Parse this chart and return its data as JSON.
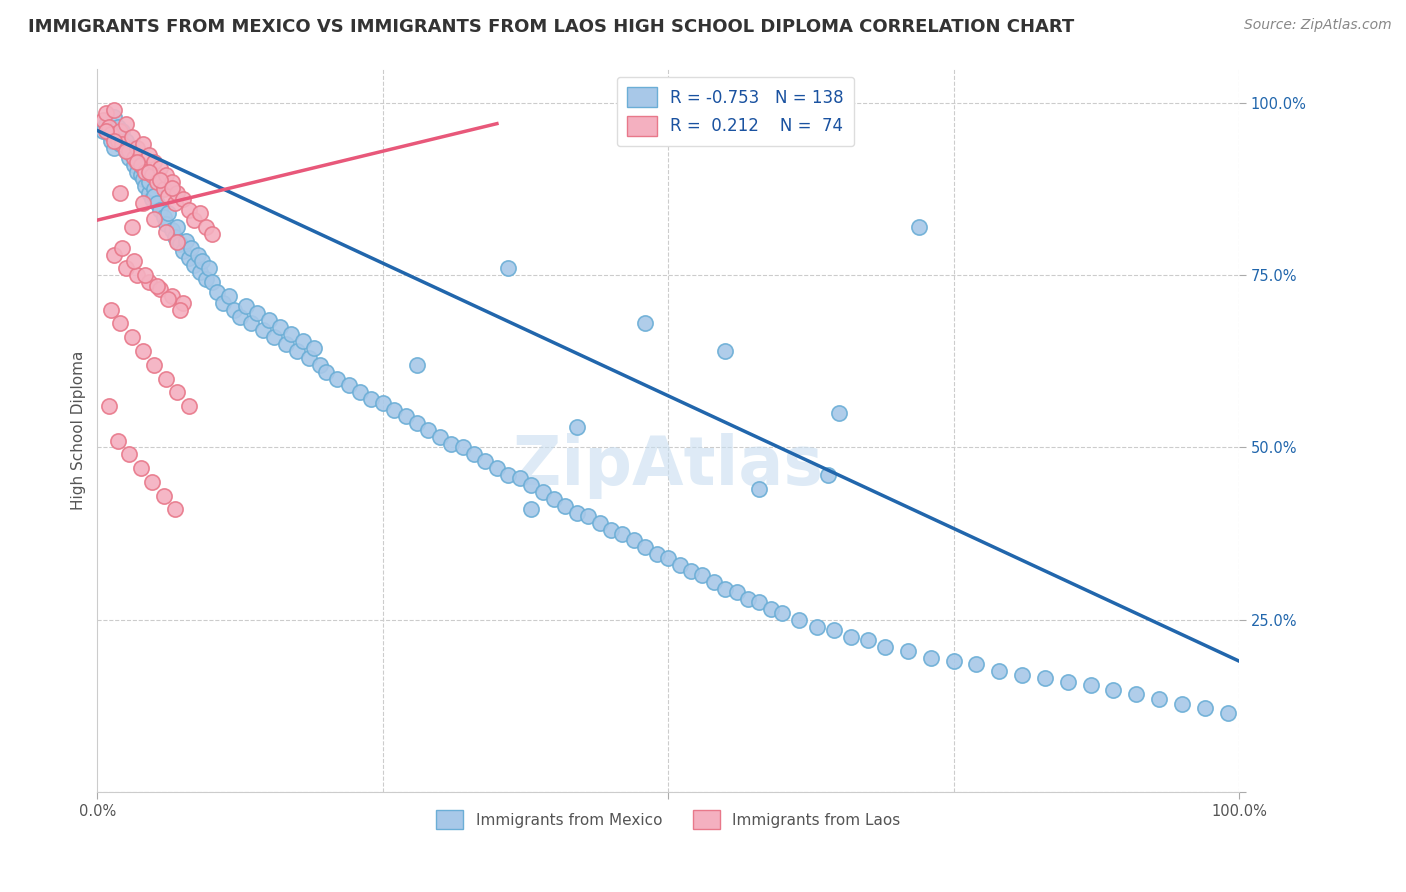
{
  "title": "IMMIGRANTS FROM MEXICO VS IMMIGRANTS FROM LAOS HIGH SCHOOL DIPLOMA CORRELATION CHART",
  "source": "Source: ZipAtlas.com",
  "ylabel": "High School Diploma",
  "watermark": "ZipAtlas",
  "legend_R_mexico": "-0.753",
  "legend_N_mexico": "138",
  "legend_R_laos": "0.212",
  "legend_N_laos": "74",
  "mexico_color": "#a8c8e8",
  "laos_color": "#f4b0c0",
  "mexico_edge_color": "#6baed6",
  "laos_edge_color": "#e8788a",
  "mexico_line_color": "#2166ac",
  "laos_line_color": "#e8587a",
  "title_fontsize": 13,
  "source_fontsize": 10,
  "axis_label_fontsize": 11,
  "tick_fontsize": 10.5,
  "watermark_fontsize": 48,
  "background_color": "#ffffff",
  "grid_color": "#cccccc",
  "xlim": [
    0.0,
    1.0
  ],
  "ylim": [
    0.0,
    1.05
  ],
  "yticks": [
    0.0,
    0.25,
    0.5,
    0.75,
    1.0
  ],
  "ytick_labels": [
    "",
    "25.0%",
    "50.0%",
    "75.0%",
    "100.0%"
  ],
  "mexico_scatter_x": [
    0.005,
    0.008,
    0.01,
    0.012,
    0.015,
    0.015,
    0.018,
    0.02,
    0.02,
    0.022,
    0.025,
    0.025,
    0.028,
    0.03,
    0.03,
    0.032,
    0.035,
    0.035,
    0.038,
    0.04,
    0.04,
    0.042,
    0.045,
    0.045,
    0.048,
    0.05,
    0.05,
    0.052,
    0.055,
    0.058,
    0.06,
    0.062,
    0.065,
    0.068,
    0.07,
    0.072,
    0.075,
    0.078,
    0.08,
    0.082,
    0.085,
    0.088,
    0.09,
    0.092,
    0.095,
    0.098,
    0.1,
    0.105,
    0.11,
    0.115,
    0.12,
    0.125,
    0.13,
    0.135,
    0.14,
    0.145,
    0.15,
    0.155,
    0.16,
    0.165,
    0.17,
    0.175,
    0.18,
    0.185,
    0.19,
    0.195,
    0.2,
    0.21,
    0.22,
    0.23,
    0.24,
    0.25,
    0.26,
    0.27,
    0.28,
    0.29,
    0.3,
    0.31,
    0.32,
    0.33,
    0.34,
    0.35,
    0.36,
    0.37,
    0.38,
    0.39,
    0.4,
    0.41,
    0.42,
    0.43,
    0.44,
    0.45,
    0.46,
    0.47,
    0.48,
    0.49,
    0.5,
    0.51,
    0.52,
    0.53,
    0.54,
    0.55,
    0.56,
    0.57,
    0.58,
    0.59,
    0.6,
    0.615,
    0.63,
    0.645,
    0.66,
    0.675,
    0.69,
    0.71,
    0.73,
    0.75,
    0.77,
    0.79,
    0.81,
    0.83,
    0.85,
    0.87,
    0.89,
    0.91,
    0.93,
    0.95,
    0.97,
    0.99,
    0.58,
    0.64,
    0.42,
    0.72,
    0.28,
    0.48,
    0.36,
    0.55,
    0.65,
    0.38
  ],
  "mexico_scatter_y": [
    0.96,
    0.97,
    0.955,
    0.945,
    0.98,
    0.935,
    0.965,
    0.95,
    0.94,
    0.96,
    0.93,
    0.945,
    0.92,
    0.935,
    0.925,
    0.91,
    0.9,
    0.915,
    0.895,
    0.905,
    0.89,
    0.88,
    0.87,
    0.885,
    0.86,
    0.875,
    0.865,
    0.855,
    0.845,
    0.835,
    0.825,
    0.84,
    0.815,
    0.805,
    0.82,
    0.795,
    0.785,
    0.8,
    0.775,
    0.79,
    0.765,
    0.78,
    0.755,
    0.77,
    0.745,
    0.76,
    0.74,
    0.725,
    0.71,
    0.72,
    0.7,
    0.69,
    0.705,
    0.68,
    0.695,
    0.67,
    0.685,
    0.66,
    0.675,
    0.65,
    0.665,
    0.64,
    0.655,
    0.63,
    0.645,
    0.62,
    0.61,
    0.6,
    0.59,
    0.58,
    0.57,
    0.565,
    0.555,
    0.545,
    0.535,
    0.525,
    0.515,
    0.505,
    0.5,
    0.49,
    0.48,
    0.47,
    0.46,
    0.455,
    0.445,
    0.435,
    0.425,
    0.415,
    0.405,
    0.4,
    0.39,
    0.38,
    0.375,
    0.365,
    0.355,
    0.345,
    0.34,
    0.33,
    0.32,
    0.315,
    0.305,
    0.295,
    0.29,
    0.28,
    0.275,
    0.265,
    0.26,
    0.25,
    0.24,
    0.235,
    0.225,
    0.22,
    0.21,
    0.205,
    0.195,
    0.19,
    0.185,
    0.175,
    0.17,
    0.165,
    0.16,
    0.155,
    0.148,
    0.142,
    0.135,
    0.128,
    0.122,
    0.115,
    0.44,
    0.46,
    0.53,
    0.82,
    0.62,
    0.68,
    0.76,
    0.64,
    0.55,
    0.41
  ],
  "laos_scatter_x": [
    0.005,
    0.008,
    0.01,
    0.012,
    0.015,
    0.018,
    0.02,
    0.022,
    0.025,
    0.028,
    0.03,
    0.032,
    0.035,
    0.038,
    0.04,
    0.042,
    0.045,
    0.048,
    0.05,
    0.052,
    0.055,
    0.058,
    0.06,
    0.062,
    0.065,
    0.068,
    0.07,
    0.075,
    0.08,
    0.085,
    0.09,
    0.095,
    0.1,
    0.008,
    0.015,
    0.025,
    0.035,
    0.045,
    0.055,
    0.065,
    0.04,
    0.03,
    0.02,
    0.05,
    0.06,
    0.07,
    0.015,
    0.025,
    0.035,
    0.045,
    0.055,
    0.065,
    0.075,
    0.012,
    0.022,
    0.032,
    0.042,
    0.052,
    0.062,
    0.072,
    0.01,
    0.02,
    0.03,
    0.04,
    0.05,
    0.06,
    0.07,
    0.08,
    0.018,
    0.028,
    0.038,
    0.048,
    0.058,
    0.068
  ],
  "laos_scatter_y": [
    0.975,
    0.985,
    0.965,
    0.955,
    0.99,
    0.945,
    0.96,
    0.94,
    0.97,
    0.93,
    0.95,
    0.92,
    0.935,
    0.91,
    0.94,
    0.9,
    0.925,
    0.895,
    0.915,
    0.885,
    0.905,
    0.875,
    0.895,
    0.865,
    0.885,
    0.855,
    0.87,
    0.86,
    0.845,
    0.83,
    0.84,
    0.82,
    0.81,
    0.96,
    0.945,
    0.93,
    0.915,
    0.9,
    0.888,
    0.876,
    0.855,
    0.82,
    0.87,
    0.832,
    0.812,
    0.798,
    0.78,
    0.76,
    0.75,
    0.74,
    0.73,
    0.72,
    0.71,
    0.7,
    0.79,
    0.77,
    0.75,
    0.735,
    0.715,
    0.7,
    0.56,
    0.68,
    0.66,
    0.64,
    0.62,
    0.6,
    0.58,
    0.56,
    0.51,
    0.49,
    0.47,
    0.45,
    0.43,
    0.41
  ],
  "mexico_trendline_x": [
    0.0,
    1.0
  ],
  "mexico_trendline_y": [
    0.96,
    0.19
  ],
  "laos_trendline_x": [
    0.0,
    0.35
  ],
  "laos_trendline_y": [
    0.83,
    0.97
  ]
}
